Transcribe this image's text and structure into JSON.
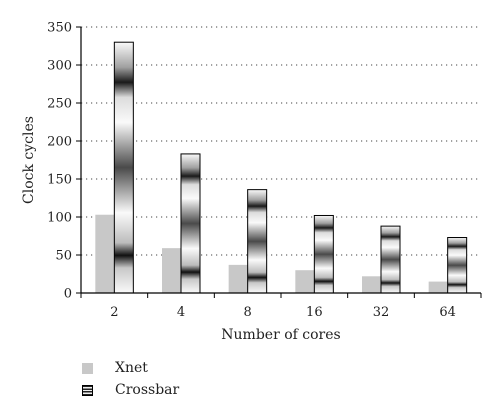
{
  "chart_data": {
    "type": "bar",
    "title": "",
    "xlabel": "Number of cores",
    "ylabel": "Clock cycles",
    "categories": [
      "2",
      "4",
      "8",
      "16",
      "32",
      "64"
    ],
    "series": [
      {
        "name": "Xnet",
        "values": [
          103,
          59,
          37,
          30,
          22,
          15
        ],
        "color": "#c8c8c8"
      },
      {
        "name": "Crossbar",
        "values": [
          330,
          183,
          136,
          102,
          88,
          73
        ],
        "color": "#808080"
      }
    ],
    "ylim": [
      0,
      350
    ],
    "yticks": [
      0,
      50,
      100,
      150,
      200,
      250,
      300,
      350
    ],
    "grid": "y-dotted",
    "legend_position": "bottom-left"
  },
  "legend": {
    "xnet_label": "Xnet",
    "crossbar_label": "Crossbar"
  }
}
